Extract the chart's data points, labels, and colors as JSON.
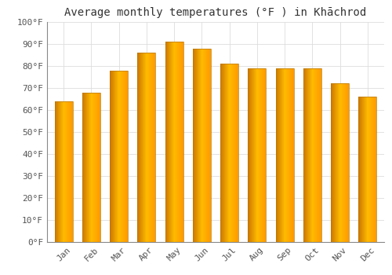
{
  "title": "Average monthly temperatures (°F ) in Khāchrod",
  "months": [
    "Jan",
    "Feb",
    "Mar",
    "Apr",
    "May",
    "Jun",
    "Jul",
    "Aug",
    "Sep",
    "Oct",
    "Nov",
    "Dec"
  ],
  "values": [
    64,
    68,
    78,
    86,
    91,
    88,
    81,
    79,
    79,
    79,
    72,
    66
  ],
  "bar_color_main": "#FFA500",
  "bar_color_light": "#FFD04A",
  "bar_color_dark": "#E08800",
  "bar_edge_color": "#B87800",
  "background_color": "#FFFFFF",
  "ylim": [
    0,
    100
  ],
  "yticks": [
    0,
    10,
    20,
    30,
    40,
    50,
    60,
    70,
    80,
    90,
    100
  ],
  "ytick_labels": [
    "0°F",
    "10°F",
    "20°F",
    "30°F",
    "40°F",
    "50°F",
    "60°F",
    "70°F",
    "80°F",
    "90°F",
    "100°F"
  ],
  "grid_color": "#DDDDDD",
  "title_fontsize": 10,
  "tick_fontsize": 8,
  "font_family": "monospace",
  "bar_width": 0.65
}
